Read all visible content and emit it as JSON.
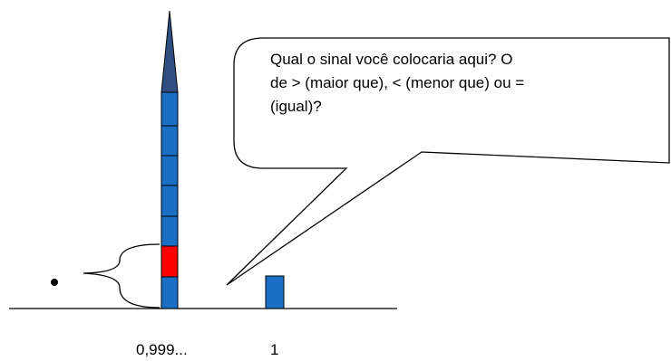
{
  "bubble": {
    "lines": [
      "Qual o sinal você colocaria aqui?  O",
      "de > (maior que), < (menor que) ou =",
      "(igual)?"
    ]
  },
  "labels": {
    "left": "0,999...",
    "right": "1"
  }
}
